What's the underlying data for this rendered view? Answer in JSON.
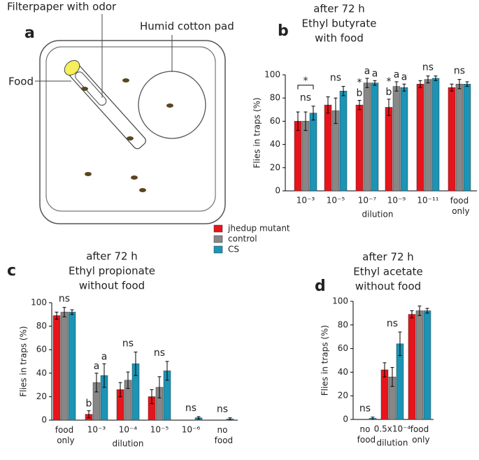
{
  "panel_a": {
    "panel_label": "a",
    "filter_label": "Filterpaper with odor",
    "pad_label": "Humid cotton pad",
    "food_label": "Food"
  },
  "chart_data": [
    {
      "type": "bar",
      "panel_label": "b",
      "title": [
        "after 72 h",
        "Ethyl butyrate",
        "with food"
      ],
      "ylabel": "Flies in traps (%)",
      "xlabel": "dilution",
      "categories": [
        "10⁻³",
        "10⁻⁵",
        "10⁻⁷",
        "10⁻⁹",
        "10⁻¹¹",
        "food only"
      ],
      "ylim": [
        0,
        100
      ],
      "yticks": [
        0,
        20,
        40,
        60,
        80,
        100
      ],
      "group_labels": [
        "ns",
        "ns",
        null,
        null,
        "ns",
        "ns"
      ],
      "bracket_labels": [
        "*",
        null,
        null,
        null,
        null,
        null
      ],
      "series": [
        {
          "name": "jhedup mutant",
          "color": "#e8141b",
          "values": [
            60,
            74,
            74,
            72,
            92,
            89
          ],
          "errors": [
            8,
            7,
            4,
            7,
            3,
            3
          ],
          "labels": [
            null,
            null,
            "b",
            "b",
            null,
            null
          ],
          "stars": [
            null,
            null,
            "*",
            "*",
            null,
            null
          ]
        },
        {
          "name": "control",
          "color": "#878787",
          "values": [
            60,
            69,
            93,
            90,
            96,
            92
          ],
          "errors": [
            8,
            11,
            4,
            4,
            3,
            4
          ],
          "labels": [
            null,
            null,
            "a",
            "a",
            null,
            null
          ]
        },
        {
          "name": "CS",
          "color": "#1b94b5",
          "values": [
            67,
            86,
            93,
            89,
            97,
            92
          ],
          "errors": [
            6,
            4,
            2,
            3,
            2,
            2
          ],
          "labels": [
            null,
            null,
            "a",
            "a",
            null,
            null
          ]
        }
      ]
    },
    {
      "type": "bar",
      "panel_label": "c",
      "title": [
        "after 72 h",
        "Ethyl propionate",
        "without food"
      ],
      "ylabel": "Flies in traps (%)",
      "xlabel": "dilution",
      "categories": [
        "food only",
        "10⁻³",
        "10⁻⁴",
        "10⁻⁵",
        "10⁻⁶",
        "no food"
      ],
      "ylim": [
        0,
        100
      ],
      "yticks": [
        0,
        20,
        40,
        60,
        80,
        100
      ],
      "group_labels": [
        "ns",
        null,
        "ns",
        "ns",
        "ns",
        "ns"
      ],
      "series": [
        {
          "color": "#e8141b",
          "values": [
            89,
            5,
            26,
            20,
            0,
            0
          ],
          "errors": [
            3,
            3,
            6,
            6,
            0,
            0
          ],
          "labels": [
            null,
            "b",
            null,
            null,
            null,
            null
          ]
        },
        {
          "color": "#878787",
          "values": [
            92,
            32,
            34,
            28,
            0,
            0
          ],
          "errors": [
            4,
            8,
            7,
            9,
            0,
            0
          ],
          "labels": [
            null,
            "a",
            null,
            null,
            null,
            null
          ]
        },
        {
          "color": "#1b94b5",
          "values": [
            92,
            38,
            48,
            42,
            2,
            1
          ],
          "errors": [
            2,
            10,
            10,
            8,
            1,
            1
          ],
          "labels": [
            null,
            "a",
            null,
            null,
            null,
            null
          ]
        }
      ]
    },
    {
      "type": "bar",
      "panel_label": "d",
      "title": [
        "after 72 h",
        "Ethyl acetate",
        "without food"
      ],
      "ylabel": "Flies in traps (%)",
      "xlabel": "dilution",
      "categories": [
        "no food",
        "0.5x10⁻⁴",
        "food only"
      ],
      "ylim": [
        0,
        100
      ],
      "yticks": [
        0,
        20,
        40,
        60,
        80,
        100
      ],
      "group_labels": [
        "ns",
        "ns",
        null
      ],
      "series": [
        {
          "color": "#e8141b",
          "values": [
            0,
            42,
            89
          ],
          "errors": [
            0,
            6,
            3
          ]
        },
        {
          "color": "#878787",
          "values": [
            0,
            36,
            92
          ],
          "errors": [
            0,
            8,
            4
          ]
        },
        {
          "color": "#1b94b5",
          "values": [
            1,
            64,
            92
          ],
          "errors": [
            1,
            10,
            2
          ]
        }
      ]
    }
  ]
}
